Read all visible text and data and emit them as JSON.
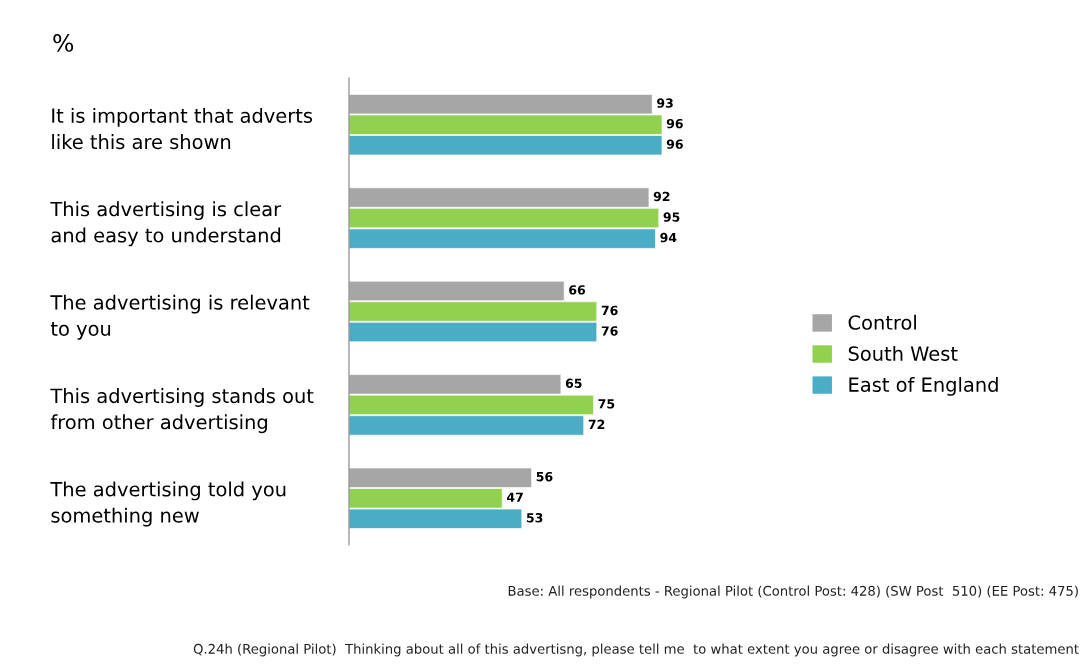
{
  "chart_data": {
    "type": "bar",
    "orientation": "horizontal",
    "title": "%",
    "categories": [
      "It is important that adverts like this are shown",
      "This advertising is clear and easy to understand",
      "The advertising is relevant to you",
      "This advertising stands out from other advertising",
      "The advertising told you something new"
    ],
    "series": [
      {
        "name": "Control",
        "color": "#a6a6a6",
        "values": [
          93,
          92,
          66,
          65,
          56
        ]
      },
      {
        "name": "South West",
        "color": "#92d050",
        "values": [
          96,
          95,
          76,
          75,
          47
        ]
      },
      {
        "name": "East of England",
        "color": "#4bacc6",
        "values": [
          96,
          94,
          76,
          72,
          53
        ]
      }
    ],
    "tick_labels": "y",
    "data_labels": true,
    "legend": "right",
    "grid": false,
    "annotations": [
      "Base: All respondents - Regional Pilot (Control Post: 428) (SW Post  510) (EE Post: 475)",
      "Q.24h (Regional Pilot)  Thinking about all of this advertisng, please tell me  to what extent you agree or disagree with each statement"
    ]
  }
}
